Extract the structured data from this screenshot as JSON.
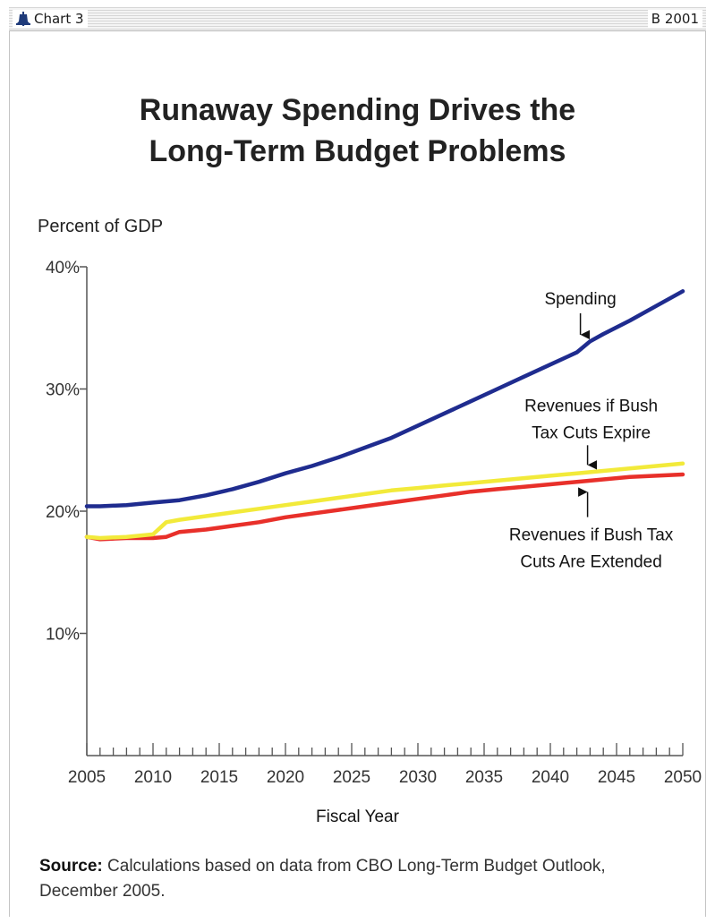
{
  "header": {
    "chart_label": "Chart 3",
    "code": "B 2001"
  },
  "colors": {
    "spending": "#1f2c8f",
    "revenues_expire": "#f2ea3a",
    "revenues_extended": "#e8302a",
    "axis": "#555555"
  },
  "chart_data": {
    "type": "line",
    "title": "Runaway Spending Drives the Long-Term Budget Problems",
    "title_lines": [
      "Runaway Spending Drives the",
      "Long-Term Budget Problems"
    ],
    "ylabel": "Percent of GDP",
    "xlabel": "Fiscal Year",
    "ylim": [
      0,
      40
    ],
    "xlim": [
      2005,
      2050
    ],
    "y_ticks": [
      10,
      20,
      30,
      40
    ],
    "y_tick_labels": [
      "10%",
      "20%",
      "30%",
      "40%"
    ],
    "x_ticks": [
      2005,
      2010,
      2015,
      2020,
      2025,
      2030,
      2035,
      2040,
      2045,
      2050
    ],
    "x_tick_labels": [
      "2005",
      "2010",
      "2015",
      "2020",
      "2025",
      "2030",
      "2035",
      "2040",
      "2045",
      "2050"
    ],
    "legend": "none (inline annotations)",
    "grid": false,
    "series": [
      {
        "name": "Spending",
        "key": "spending",
        "x": [
          2005,
          2006,
          2008,
          2010,
          2012,
          2014,
          2016,
          2018,
          2020,
          2022,
          2024,
          2026,
          2028,
          2030,
          2032,
          2034,
          2036,
          2038,
          2040,
          2042,
          2043,
          2044,
          2046,
          2048,
          2050
        ],
        "y": [
          20.4,
          20.4,
          20.5,
          20.7,
          20.9,
          21.3,
          21.8,
          22.4,
          23.1,
          23.7,
          24.4,
          25.2,
          26.0,
          27.0,
          28.0,
          29.0,
          30.0,
          31.0,
          32.0,
          33.0,
          33.9,
          34.5,
          35.6,
          36.8,
          38.0
        ]
      },
      {
        "name": "Revenues if Bush Tax Cuts Expire",
        "key": "revenues_expire",
        "x": [
          2005,
          2006,
          2008,
          2010,
          2011,
          2012,
          2014,
          2016,
          2018,
          2020,
          2022,
          2024,
          2026,
          2028,
          2030,
          2032,
          2034,
          2036,
          2038,
          2040,
          2042,
          2044,
          2046,
          2048,
          2050
        ],
        "y": [
          17.9,
          17.8,
          17.9,
          18.1,
          19.1,
          19.3,
          19.6,
          19.9,
          20.2,
          20.5,
          20.8,
          21.1,
          21.4,
          21.7,
          21.9,
          22.1,
          22.3,
          22.5,
          22.7,
          22.9,
          23.1,
          23.3,
          23.5,
          23.7,
          23.9
        ]
      },
      {
        "name": "Revenues if Bush Tax Cuts Are Extended",
        "key": "revenues_extended",
        "x": [
          2005,
          2006,
          2008,
          2010,
          2011,
          2012,
          2014,
          2016,
          2018,
          2020,
          2022,
          2024,
          2026,
          2028,
          2030,
          2032,
          2034,
          2036,
          2038,
          2040,
          2042,
          2044,
          2046,
          2048,
          2050
        ],
        "y": [
          17.9,
          17.7,
          17.8,
          17.8,
          17.9,
          18.3,
          18.5,
          18.8,
          19.1,
          19.5,
          19.8,
          20.1,
          20.4,
          20.7,
          21.0,
          21.3,
          21.6,
          21.8,
          22.0,
          22.2,
          22.4,
          22.6,
          22.8,
          22.9,
          23.0
        ]
      }
    ],
    "annotations": [
      {
        "key": "spending",
        "lines": [
          "Spending"
        ],
        "year": 2042,
        "value": 34.0
      },
      {
        "key": "revenues_expire",
        "lines": [
          "Revenues if Bush",
          "Tax Cuts Expire"
        ],
        "year": 2042,
        "value": 23.2
      },
      {
        "key": "revenues_extended",
        "lines": [
          "Revenues if Bush Tax",
          "Cuts Are Extended"
        ],
        "year": 2042,
        "value": 22.3
      }
    ]
  },
  "source": {
    "label": "Source:",
    "text": "Calculations based on data from CBO Long-Term Budget Outlook, December 2005."
  }
}
